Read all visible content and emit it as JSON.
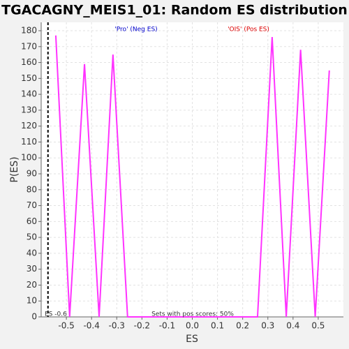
{
  "chart_data": {
    "type": "line",
    "title": "TGACAGNY_MEIS1_01: Random ES distribution",
    "x_label": "ES",
    "y_label": "P(ES)",
    "x": [
      -0.542,
      -0.487,
      -0.428,
      -0.37,
      -0.315,
      -0.257,
      0.259,
      0.317,
      0.373,
      0.43,
      0.488,
      0.544
    ],
    "values": [
      177,
      0,
      159,
      0,
      165,
      0,
      0,
      176,
      0,
      168,
      0,
      155
    ],
    "color": "#ff33ff",
    "xlim": [
      -0.6,
      0.6
    ],
    "ylim": [
      0,
      180
    ],
    "xticks": [
      -0.5,
      -0.4,
      -0.3,
      -0.2,
      -0.1,
      {
        "value": 0,
        "label": "0.0"
      },
      0.1,
      0.2,
      0.3,
      0.4,
      0.5
    ],
    "yticks": [
      0,
      10,
      20,
      30,
      40,
      50,
      60,
      70,
      80,
      90,
      100,
      110,
      120,
      130,
      140,
      150,
      160,
      170,
      180
    ],
    "grid": true,
    "neg_label": {
      "text": "'Pro' (Neg ES)",
      "color": "#0000cc"
    },
    "pos_label": {
      "text": "'OIS' (Pos ES)",
      "color": "#dd0000"
    },
    "es_marker": {
      "value": -0.573,
      "label": "ES -0.6"
    },
    "annotation": "Sets with pos scores: 50%"
  }
}
